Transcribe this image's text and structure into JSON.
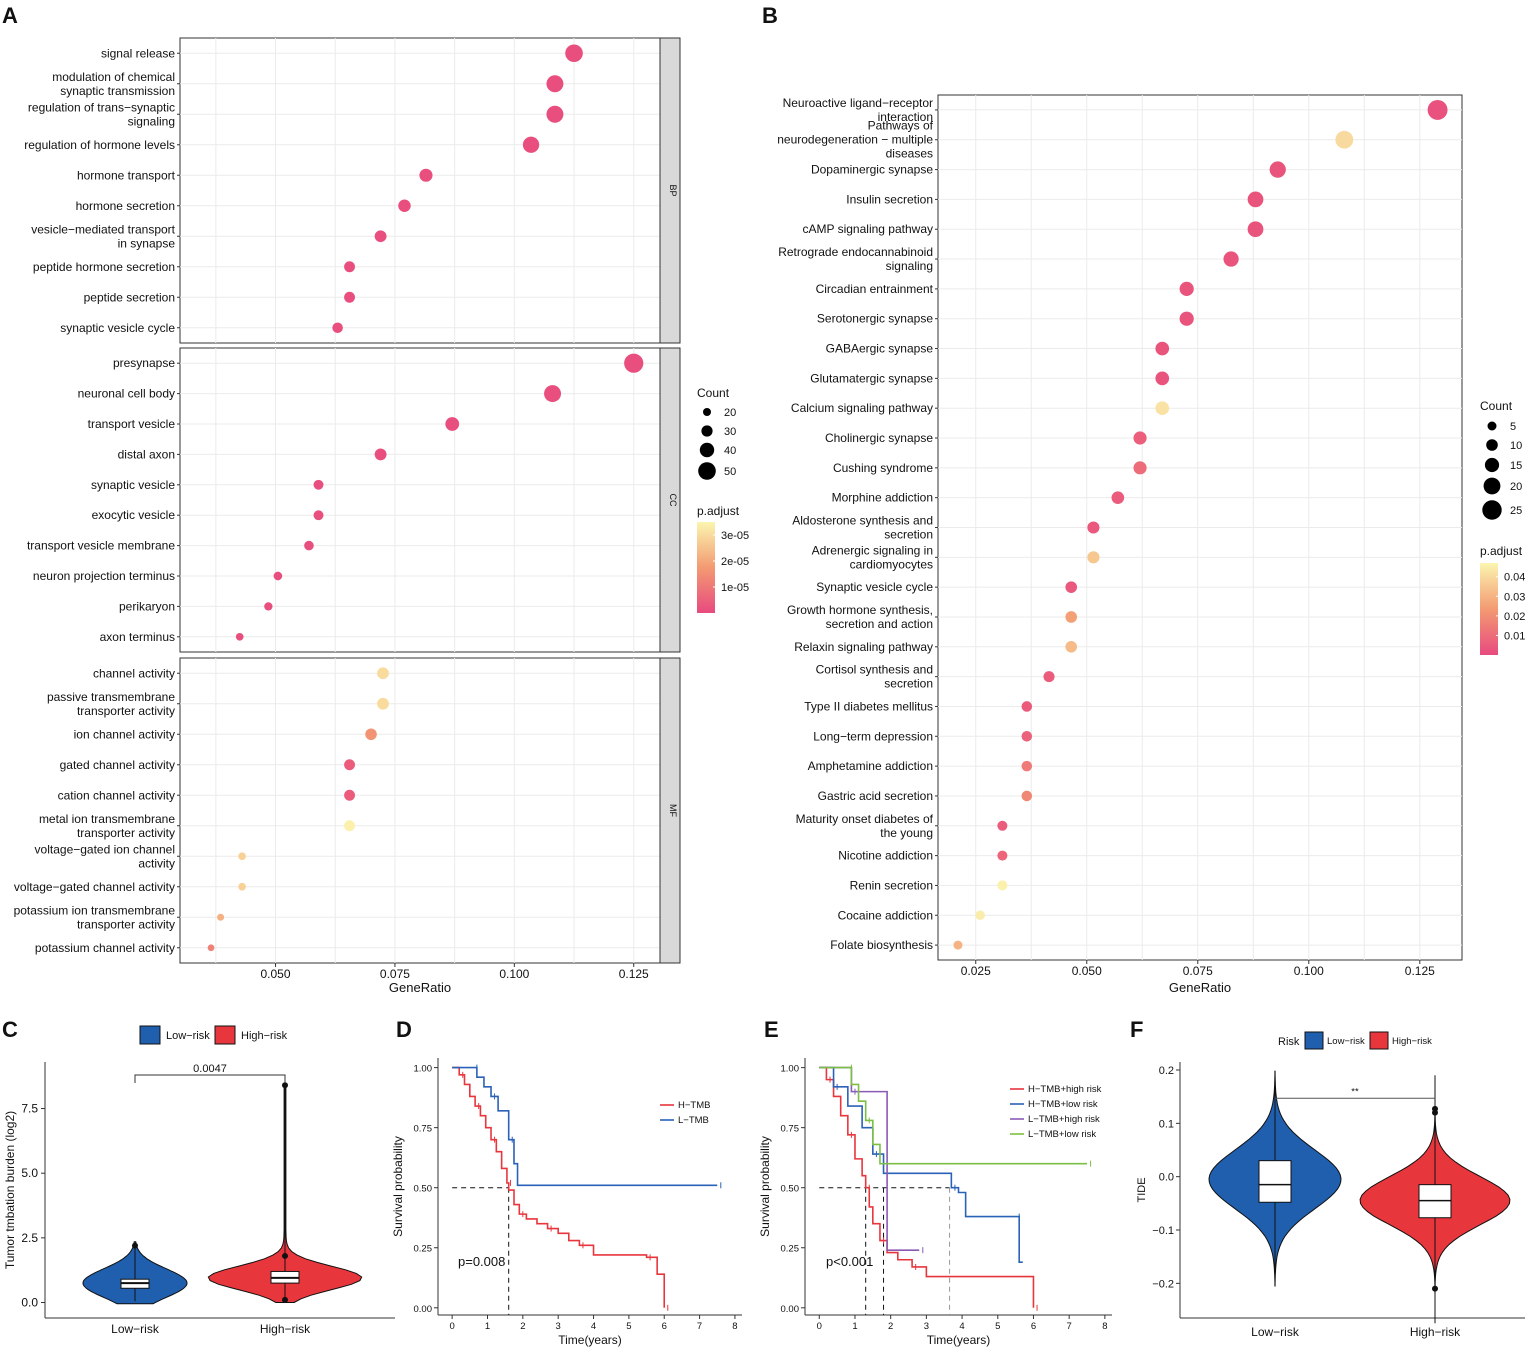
{
  "panel_labels": {
    "a": "A",
    "b": "B",
    "c": "C",
    "d": "D",
    "e": "E",
    "f": "F"
  },
  "colors": {
    "low": "#1f5fae",
    "high": "#e8363d",
    "pink": "#e84a7f",
    "yellow": "#fbf5b0"
  },
  "chart_data": [
    {
      "id": "A",
      "type": "scatter",
      "subtype": "dot-plot",
      "xlabel": "GeneRatio",
      "xlim": [
        0.03,
        0.1305
      ],
      "xticks": [
        "0.050",
        "0.075",
        "0.100",
        "0.125"
      ],
      "size_legend": {
        "title": "Count",
        "values": [
          "20",
          "30",
          "40",
          "50"
        ]
      },
      "color_legend": {
        "title": "p.adjust",
        "ticks": [
          "3e-05",
          "2e-05",
          "1e-05"
        ],
        "range": [
          0,
          3.5e-05
        ]
      },
      "facets": [
        {
          "label": "BP",
          "terms": [
            {
              "name": "signal release",
              "x": 0.1125,
              "count": 50,
              "padj": 1e-06
            },
            {
              "name": "modulation of chemical\nsynaptic transmission",
              "x": 0.1085,
              "count": 48,
              "padj": 1e-06
            },
            {
              "name": "regulation of trans−synaptic\nsignaling",
              "x": 0.1085,
              "count": 48,
              "padj": 1e-06
            },
            {
              "name": "regulation of hormone levels",
              "x": 0.1035,
              "count": 46,
              "padj": 1e-06
            },
            {
              "name": "hormone transport",
              "x": 0.0815,
              "count": 36,
              "padj": 1e-06
            },
            {
              "name": "hormone secretion",
              "x": 0.077,
              "count": 34,
              "padj": 1e-06
            },
            {
              "name": "vesicle−mediated transport\nin synapse",
              "x": 0.072,
              "count": 32,
              "padj": 1e-06
            },
            {
              "name": "peptide hormone secretion",
              "x": 0.0655,
              "count": 29,
              "padj": 1e-06
            },
            {
              "name": "peptide secretion",
              "x": 0.0655,
              "count": 29,
              "padj": 1e-06
            },
            {
              "name": "synaptic vesicle cycle",
              "x": 0.063,
              "count": 28,
              "padj": 1e-06
            }
          ]
        },
        {
          "label": "CC",
          "terms": [
            {
              "name": "presynapse",
              "x": 0.125,
              "count": 55,
              "padj": 1e-06
            },
            {
              "name": "neuronal cell body",
              "x": 0.108,
              "count": 48,
              "padj": 1e-06
            },
            {
              "name": "transport vesicle",
              "x": 0.087,
              "count": 38,
              "padj": 1e-06
            },
            {
              "name": "distal axon",
              "x": 0.072,
              "count": 32,
              "padj": 1e-06
            },
            {
              "name": "synaptic vesicle",
              "x": 0.059,
              "count": 26,
              "padj": 1e-06
            },
            {
              "name": "exocytic vesicle",
              "x": 0.059,
              "count": 26,
              "padj": 1e-06
            },
            {
              "name": "transport vesicle membrane",
              "x": 0.057,
              "count": 25,
              "padj": 1e-06
            },
            {
              "name": "neuron projection terminus",
              "x": 0.0505,
              "count": 22,
              "padj": 1e-06
            },
            {
              "name": "perikaryon",
              "x": 0.0485,
              "count": 21,
              "padj": 1e-06
            },
            {
              "name": "axon terminus",
              "x": 0.0425,
              "count": 19,
              "padj": 1e-06
            }
          ]
        },
        {
          "label": "MF",
          "terms": [
            {
              "name": "channel activity",
              "x": 0.0725,
              "count": 32,
              "padj": 3e-05
            },
            {
              "name": "passive transmembrane\ntransporter activity",
              "x": 0.0725,
              "count": 32,
              "padj": 3e-05
            },
            {
              "name": "ion channel activity",
              "x": 0.07,
              "count": 31,
              "padj": 1.6e-05
            },
            {
              "name": "gated channel activity",
              "x": 0.0655,
              "count": 29,
              "padj": 4e-06
            },
            {
              "name": "cation channel activity",
              "x": 0.0655,
              "count": 29,
              "padj": 4e-06
            },
            {
              "name": "metal ion transmembrane\ntransporter activity",
              "x": 0.0655,
              "count": 29,
              "padj": 3.4e-05
            },
            {
              "name": "voltage−gated ion channel\nactivity",
              "x": 0.043,
              "count": 19,
              "padj": 2.8e-05
            },
            {
              "name": "voltage−gated channel activity",
              "x": 0.043,
              "count": 19,
              "padj": 2.8e-05
            },
            {
              "name": "potassium ion transmembrane\ntransporter activity",
              "x": 0.0385,
              "count": 17,
              "padj": 2.2e-05
            },
            {
              "name": "potassium channel activity",
              "x": 0.0365,
              "count": 16,
              "padj": 1.2e-05
            }
          ]
        }
      ]
    },
    {
      "id": "B",
      "type": "scatter",
      "subtype": "dot-plot",
      "xlabel": "GeneRatio",
      "xlim": [
        0.0165,
        0.1345
      ],
      "xticks": [
        "0.025",
        "0.050",
        "0.075",
        "0.100",
        "0.125"
      ],
      "size_legend": {
        "title": "Count",
        "values": [
          "5",
          "10",
          "15",
          "20",
          "25"
        ]
      },
      "color_legend": {
        "title": "p.adjust",
        "ticks": [
          "0.04",
          "0.03",
          "0.02",
          "0.01"
        ],
        "range": [
          0,
          0.047
        ]
      },
      "terms": [
        {
          "name": "Neuroactive ligand−receptor\ninteraction",
          "x": 0.129,
          "count": 26,
          "padj": 0.002
        },
        {
          "name": "Pathways of\nneurodegeneration − multiple\ndiseases",
          "x": 0.108,
          "count": 22,
          "padj": 0.04
        },
        {
          "name": "Dopaminergic synapse",
          "x": 0.093,
          "count": 19,
          "padj": 0.003
        },
        {
          "name": "Insulin secretion",
          "x": 0.088,
          "count": 18,
          "padj": 0.003
        },
        {
          "name": "cAMP signaling pathway",
          "x": 0.088,
          "count": 18,
          "padj": 0.003
        },
        {
          "name": "Retrograde endocannabinoid\nsignaling",
          "x": 0.0825,
          "count": 17,
          "padj": 0.003
        },
        {
          "name": "Circadian entrainment",
          "x": 0.0725,
          "count": 15,
          "padj": 0.003
        },
        {
          "name": "Serotonergic synapse",
          "x": 0.0725,
          "count": 15,
          "padj": 0.003
        },
        {
          "name": "GABAergic synapse",
          "x": 0.067,
          "count": 14,
          "padj": 0.003
        },
        {
          "name": "Glutamatergic synapse",
          "x": 0.067,
          "count": 14,
          "padj": 0.003
        },
        {
          "name": "Calcium signaling pathway",
          "x": 0.067,
          "count": 14,
          "padj": 0.042
        },
        {
          "name": "Cholinergic synapse",
          "x": 0.062,
          "count": 13,
          "padj": 0.006
        },
        {
          "name": "Cushing syndrome",
          "x": 0.062,
          "count": 13,
          "padj": 0.01
        },
        {
          "name": "Morphine addiction",
          "x": 0.057,
          "count": 12,
          "padj": 0.005
        },
        {
          "name": "Aldosterone synthesis and\nsecretion",
          "x": 0.0515,
          "count": 11,
          "padj": 0.004
        },
        {
          "name": "Adrenergic signaling in\ncardiomyocytes",
          "x": 0.0515,
          "count": 11,
          "padj": 0.035
        },
        {
          "name": "Synaptic vesicle cycle",
          "x": 0.0465,
          "count": 10,
          "padj": 0.004
        },
        {
          "name": "Growth hormone synthesis,\nsecretion and action",
          "x": 0.0465,
          "count": 10,
          "padj": 0.025
        },
        {
          "name": "Relaxin signaling pathway",
          "x": 0.0465,
          "count": 10,
          "padj": 0.032
        },
        {
          "name": "Cortisol synthesis and\nsecretion",
          "x": 0.0415,
          "count": 9,
          "padj": 0.005
        },
        {
          "name": "Type II diabetes mellitus",
          "x": 0.0365,
          "count": 8,
          "padj": 0.005
        },
        {
          "name": "Long−term depression",
          "x": 0.0365,
          "count": 8,
          "padj": 0.007
        },
        {
          "name": "Amphetamine addiction",
          "x": 0.0365,
          "count": 8,
          "padj": 0.014
        },
        {
          "name": "Gastric acid secretion",
          "x": 0.0365,
          "count": 8,
          "padj": 0.018
        },
        {
          "name": "Maturity onset diabetes of\nthe young",
          "x": 0.031,
          "count": 7,
          "padj": 0.005
        },
        {
          "name": "Nicotine addiction",
          "x": 0.031,
          "count": 7,
          "padj": 0.008
        },
        {
          "name": "Renin secretion",
          "x": 0.031,
          "count": 7,
          "padj": 0.046
        },
        {
          "name": "Cocaine addiction",
          "x": 0.026,
          "count": 6,
          "padj": 0.045
        },
        {
          "name": "Folate biosynthesis",
          "x": 0.021,
          "count": 5,
          "padj": 0.03
        }
      ]
    },
    {
      "id": "C",
      "type": "violin",
      "ylabel": "Tumor tmbation burden (log2)",
      "ylim": [
        -0.6,
        9.3
      ],
      "yticks": [
        "0.0",
        "2.5",
        "5.0",
        "7.5"
      ],
      "categories": [
        "Low−risk",
        "High−risk"
      ],
      "legend": [
        "Low−risk",
        "High−risk"
      ],
      "pvalue": "0.0047",
      "boxes": [
        {
          "q1": 0.55,
          "median": 0.75,
          "q3": 0.9,
          "min": 0.05,
          "max": 2.1,
          "outliers": [
            2.2
          ]
        },
        {
          "q1": 0.75,
          "median": 0.95,
          "q3": 1.2,
          "min": 0.15,
          "max": 8.4,
          "outliers": [
            0.1,
            1.8,
            8.4
          ]
        }
      ]
    },
    {
      "id": "D",
      "type": "line",
      "subtype": "kaplan-meier",
      "xlabel": "Time(years)",
      "ylabel": "Survival probability",
      "xlim": [
        -0.4,
        8.2
      ],
      "ylim": [
        -0.03,
        1.04
      ],
      "xticks": [
        "0",
        "1",
        "2",
        "3",
        "4",
        "5",
        "6",
        "7",
        "8"
      ],
      "yticks": [
        "0.00",
        "0.25",
        "0.50",
        "0.75",
        "1.00"
      ],
      "pvalue": "p=0.008",
      "median_lines": [
        1.6
      ],
      "series": [
        {
          "name": "H−TMB",
          "color": "#e8363d",
          "points": [
            [
              0,
              1
            ],
            [
              0.2,
              0.97
            ],
            [
              0.35,
              0.93
            ],
            [
              0.5,
              0.88
            ],
            [
              0.65,
              0.84
            ],
            [
              0.8,
              0.8
            ],
            [
              0.95,
              0.75
            ],
            [
              1.1,
              0.7
            ],
            [
              1.25,
              0.65
            ],
            [
              1.4,
              0.58
            ],
            [
              1.55,
              0.52
            ],
            [
              1.6,
              0.49
            ],
            [
              1.75,
              0.43
            ],
            [
              1.9,
              0.39
            ],
            [
              2.1,
              0.37
            ],
            [
              2.4,
              0.35
            ],
            [
              2.7,
              0.33
            ],
            [
              3.0,
              0.31
            ],
            [
              3.3,
              0.28
            ],
            [
              3.6,
              0.26
            ],
            [
              4.0,
              0.22
            ],
            [
              5.0,
              0.22
            ],
            [
              5.5,
              0.21
            ],
            [
              5.8,
              0.14
            ],
            [
              6.0,
              0.14
            ],
            [
              6.0,
              0.0
            ]
          ]
        },
        {
          "name": "L−TMB",
          "color": "#2a62b8",
          "points": [
            [
              0,
              1
            ],
            [
              0.6,
              1
            ],
            [
              0.7,
              0.96
            ],
            [
              0.9,
              0.92
            ],
            [
              1.1,
              0.88
            ],
            [
              1.3,
              0.82
            ],
            [
              1.5,
              0.82
            ],
            [
              1.6,
              0.7
            ],
            [
              1.75,
              0.6
            ],
            [
              1.85,
              0.51
            ],
            [
              7.5,
              0.51
            ]
          ]
        }
      ]
    },
    {
      "id": "E",
      "type": "line",
      "subtype": "kaplan-meier",
      "xlabel": "Time(years)",
      "ylabel": "Survival probability",
      "xlim": [
        -0.4,
        8.2
      ],
      "ylim": [
        -0.03,
        1.04
      ],
      "xticks": [
        "0",
        "1",
        "2",
        "3",
        "4",
        "5",
        "6",
        "7",
        "8"
      ],
      "yticks": [
        "0.00",
        "0.25",
        "0.50",
        "0.75",
        "1.00"
      ],
      "pvalue": "p<0.001",
      "median_lines": [
        1.3,
        1.8,
        3.65
      ],
      "series": [
        {
          "name": "H−TMB+high risk",
          "color": "#e8363d",
          "points": [
            [
              0,
              1
            ],
            [
              0.2,
              0.95
            ],
            [
              0.4,
              0.88
            ],
            [
              0.6,
              0.8
            ],
            [
              0.8,
              0.72
            ],
            [
              1.0,
              0.62
            ],
            [
              1.2,
              0.55
            ],
            [
              1.3,
              0.5
            ],
            [
              1.4,
              0.42
            ],
            [
              1.5,
              0.35
            ],
            [
              1.7,
              0.28
            ],
            [
              1.9,
              0.23
            ],
            [
              2.2,
              0.2
            ],
            [
              2.6,
              0.17
            ],
            [
              3.0,
              0.13
            ],
            [
              6.0,
              0.13
            ],
            [
              6.0,
              0.0
            ]
          ]
        },
        {
          "name": "H−TMB+low risk",
          "color": "#2a62b8",
          "points": [
            [
              0,
              1
            ],
            [
              0.4,
              0.92
            ],
            [
              0.8,
              0.84
            ],
            [
              1.2,
              0.75
            ],
            [
              1.5,
              0.64
            ],
            [
              1.8,
              0.56
            ],
            [
              3.6,
              0.56
            ],
            [
              3.7,
              0.5
            ],
            [
              3.9,
              0.48
            ],
            [
              4.1,
              0.38
            ],
            [
              5.5,
              0.38
            ],
            [
              5.6,
              0.19
            ],
            [
              5.7,
              0.19
            ]
          ]
        },
        {
          "name": "L−TMB+high risk",
          "color": "#8a5bb5",
          "points": [
            [
              0,
              1
            ],
            [
              0.9,
              0.9
            ],
            [
              1.8,
              0.9
            ],
            [
              1.9,
              0.24
            ],
            [
              2.8,
              0.24
            ]
          ]
        },
        {
          "name": "L−TMB+low risk",
          "color": "#7cbf45",
          "points": [
            [
              0,
              1
            ],
            [
              0.8,
              1
            ],
            [
              0.9,
              0.93
            ],
            [
              1.1,
              0.86
            ],
            [
              1.3,
              0.78
            ],
            [
              1.5,
              0.68
            ],
            [
              1.7,
              0.6
            ],
            [
              7.5,
              0.6
            ]
          ]
        }
      ]
    },
    {
      "id": "F",
      "type": "violin",
      "ylabel": "TIDE",
      "ylim": [
        -0.265,
        0.215
      ],
      "yticks": [
        "-0.2",
        "-0.1",
        "0.0",
        "0.1",
        "0.2"
      ],
      "categories": [
        "Low−risk",
        "High−risk"
      ],
      "legend_title": "Risk",
      "legend": [
        "Low−risk",
        "High−risk"
      ],
      "significance": "**",
      "boxes": [
        {
          "q1": -0.048,
          "median": -0.015,
          "q3": 0.03,
          "min": -0.19,
          "max": 0.19,
          "outliers": []
        },
        {
          "q1": -0.077,
          "median": -0.045,
          "q3": -0.015,
          "min": -0.255,
          "max": 0.165,
          "outliers": [
            0.12,
            0.127,
            -0.21
          ]
        }
      ]
    }
  ]
}
